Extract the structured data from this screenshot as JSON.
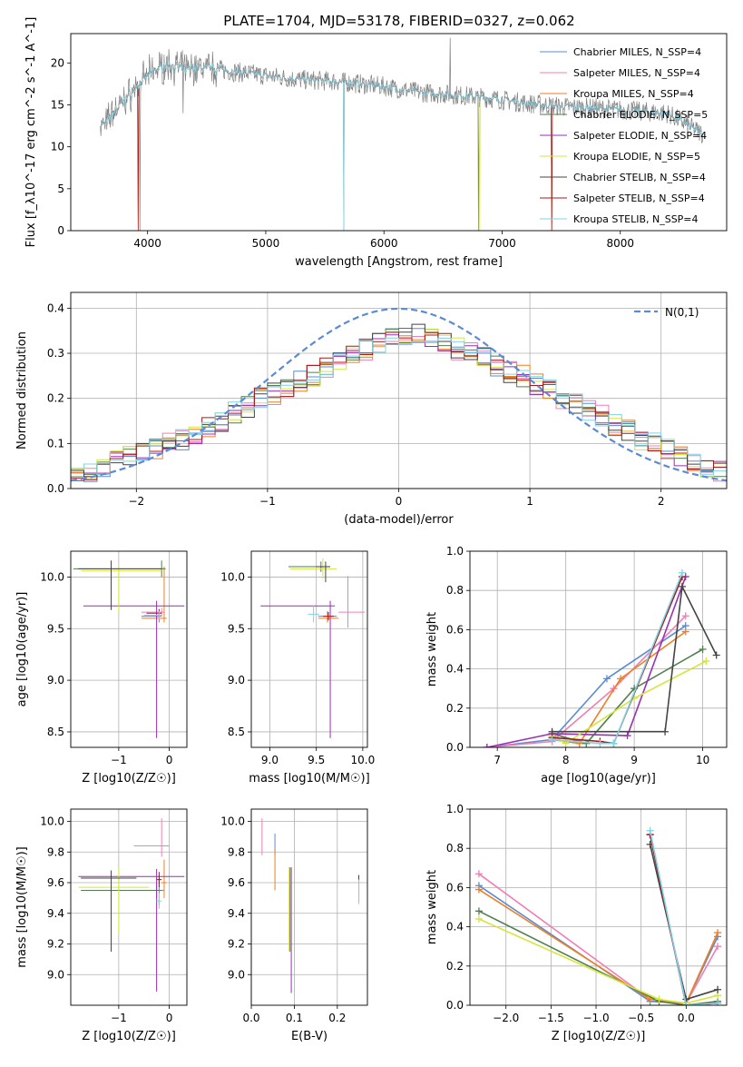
{
  "figure": {
    "title": "PLATE=1704, MJD=53178, FIBERID=0327, z=0.062"
  },
  "series_meta": [
    {
      "name": "Chabrier MILES, N_SSP=4",
      "color": "#5b8bd6"
    },
    {
      "name": "Salpeter MILES, N_SSP=4",
      "color": "#f07fb4"
    },
    {
      "name": "Kroupa MILES, N_SSP=4",
      "color": "#f07f1e"
    },
    {
      "name": "Chabrier ELODIE, N_SSP=5",
      "color": "#4f7f4f"
    },
    {
      "name": "Salpeter ELODIE, N_SSP=4",
      "color": "#9a2fb8"
    },
    {
      "name": "Kroupa ELODIE, N_SSP=5",
      "color": "#d4e63c"
    },
    {
      "name": "Chabrier STELIB, N_SSP=4",
      "color": "#444444"
    },
    {
      "name": "Salpeter STELIB, N_SSP=4",
      "color": "#a81818"
    },
    {
      "name": "Kroupa STELIB, N_SSP=4",
      "color": "#7fd4e6"
    }
  ],
  "data_color": "#808080",
  "chart_data": [
    {
      "id": "spectrum",
      "type": "line",
      "xlabel": "wavelength [Angstrom, rest frame]",
      "ylabel": "Flux [f_λ10^-17 erg cm^-2 s^-1 A^-1]",
      "xlim": [
        3350,
        8900
      ],
      "ylim": [
        0,
        23.5
      ],
      "xticks": [
        4000,
        5000,
        6000,
        7000,
        8000
      ],
      "yticks": [
        0,
        5,
        10,
        15,
        20
      ],
      "grid": false,
      "legend": "top-right",
      "x": [
        3600,
        3650,
        3700,
        3800,
        3900,
        4000,
        4100,
        4200,
        4300,
        4500,
        4700,
        5000,
        5300,
        5600,
        6000,
        6300,
        6600,
        6900,
        7200,
        7500,
        7800,
        8100,
        8400,
        8700
      ],
      "continuum": [
        12.5,
        12.8,
        14.0,
        15.5,
        17.0,
        18.5,
        19.5,
        19.8,
        19.2,
        19.5,
        19.0,
        18.5,
        18.0,
        17.8,
        17.2,
        16.5,
        16.2,
        15.8,
        15.2,
        14.8,
        14.6,
        14.3,
        14.0,
        11.5
      ]
    },
    {
      "id": "residuals",
      "type": "histogram",
      "xlabel": "(data-model)/error",
      "ylabel": "Normed distribution",
      "xlim": [
        -2.5,
        2.5
      ],
      "ylim": [
        0,
        0.435
      ],
      "xticks": [
        -2,
        -1,
        0,
        1,
        2
      ],
      "yticks": [
        0.0,
        0.1,
        0.2,
        0.3,
        0.4
      ],
      "grid": true,
      "legend": "top-right",
      "reference_curve": {
        "label": "N(0,1)",
        "color": "#5b8bd6",
        "style": "dashed",
        "mean": 0,
        "sigma": 1
      },
      "bin_width": 0.1,
      "bin_start": -2.5,
      "base_values": [
        0.03,
        0.04,
        0.045,
        0.06,
        0.07,
        0.08,
        0.09,
        0.1,
        0.11,
        0.12,
        0.14,
        0.15,
        0.17,
        0.18,
        0.2,
        0.21,
        0.22,
        0.24,
        0.25,
        0.27,
        0.28,
        0.3,
        0.31,
        0.32,
        0.33,
        0.34,
        0.34,
        0.33,
        0.32,
        0.31,
        0.3,
        0.29,
        0.27,
        0.26,
        0.25,
        0.23,
        0.22,
        0.2,
        0.19,
        0.17,
        0.16,
        0.14,
        0.13,
        0.11,
        0.1,
        0.09,
        0.07,
        0.06,
        0.05,
        0.04
      ]
    },
    {
      "id": "age-vs-Z",
      "type": "scatter",
      "xlabel": "Z [log10(Z/Z☉)]",
      "ylabel": "age  [log10(age/yr)]",
      "xlim": [
        -1.95,
        0.35
      ],
      "ylim": [
        8.35,
        10.25
      ],
      "xticks": [
        -1,
        0
      ],
      "xticklabels": [
        "−1",
        "0"
      ],
      "yticks": [
        8.5,
        9.0,
        9.5,
        10.0
      ],
      "grid": true,
      "points": [
        {
          "s": 0,
          "x": -0.2,
          "y": 9.62,
          "xerr": [
            0.35,
            0.05
          ],
          "yerr": [
            0.06,
            0.05
          ]
        },
        {
          "s": 1,
          "x": -0.15,
          "y": 9.66,
          "xerr": [
            0.4,
            0.05
          ],
          "yerr": [
            0.04,
            0.04
          ]
        },
        {
          "s": 2,
          "x": -0.1,
          "y": 9.6,
          "xerr": [
            0.45,
            0.05
          ],
          "yerr": [
            0.04,
            0.5
          ]
        },
        {
          "s": 3,
          "x": -0.15,
          "y": 10.08,
          "xerr": [
            1.75,
            0.08
          ],
          "yerr": [
            0.08,
            0.08
          ]
        },
        {
          "s": 4,
          "x": -0.25,
          "y": 9.72,
          "xerr": [
            1.45,
            0.55
          ],
          "yerr": [
            1.28,
            0.05
          ]
        },
        {
          "s": 5,
          "x": -1.0,
          "y": 10.06,
          "xerr": [
            0.75,
            0.85
          ],
          "yerr": [
            0.4,
            0.05
          ]
        },
        {
          "s": 6,
          "x": -1.15,
          "y": 10.08,
          "xerr": [
            0.65,
            1.0
          ],
          "yerr": [
            0.4,
            0.08
          ]
        },
        {
          "s": 7,
          "x": -0.2,
          "y": 9.65,
          "xerr": [
            0.25,
            0.05
          ],
          "yerr": [
            0.04,
            0.04
          ]
        },
        {
          "s": 8,
          "x": -0.2,
          "y": 9.63,
          "xerr": [
            0.3,
            0.05
          ],
          "yerr": [
            0.04,
            0.04
          ]
        }
      ]
    },
    {
      "id": "age-vs-mass",
      "type": "scatter",
      "xlabel": "mass [log10(M/M☉)]",
      "ylabel": "",
      "xlim": [
        8.8,
        10.05
      ],
      "ylim": [
        8.35,
        10.25
      ],
      "xticks": [
        9.0,
        9.5,
        10.0
      ],
      "yticks": [
        8.5,
        9.0,
        9.5,
        10.0
      ],
      "grid": true,
      "points": [
        {
          "s": 0,
          "x": 9.62,
          "y": 9.62,
          "xerr": [
            0.1,
            0.1
          ],
          "yerr": [
            0.06,
            0.05
          ]
        },
        {
          "s": 1,
          "x": 9.84,
          "y": 9.66,
          "xerr": [
            0.1,
            0.18
          ],
          "yerr": [
            0.15,
            0.35
          ]
        },
        {
          "s": 2,
          "x": 9.62,
          "y": 9.6,
          "xerr": [
            0.1,
            0.12
          ],
          "yerr": [
            0.04,
            0.04
          ]
        },
        {
          "s": 3,
          "x": 9.55,
          "y": 10.1,
          "xerr": [
            0.35,
            0.1
          ],
          "yerr": [
            0.05,
            0.05
          ]
        },
        {
          "s": 4,
          "x": 9.65,
          "y": 9.72,
          "xerr": [
            0.75,
            0.05
          ],
          "yerr": [
            1.28,
            0.05
          ]
        },
        {
          "s": 5,
          "x": 9.57,
          "y": 10.08,
          "xerr": [
            0.35,
            0.15
          ],
          "yerr": [
            0.1,
            0.1
          ]
        },
        {
          "s": 6,
          "x": 9.6,
          "y": 10.1,
          "xerr": [
            0.1,
            0.05
          ],
          "yerr": [
            0.15,
            0.05
          ]
        },
        {
          "s": 7,
          "x": 9.63,
          "y": 9.62,
          "xerr": [
            0.06,
            0.06
          ],
          "yerr": [
            0.04,
            0.04
          ]
        },
        {
          "s": 8,
          "x": 9.47,
          "y": 9.64,
          "xerr": [
            0.06,
            0.06
          ],
          "yerr": [
            0.08,
            0.08
          ]
        }
      ]
    },
    {
      "id": "weight-vs-age",
      "type": "line",
      "xlabel": "age  [log10(age/yr)]",
      "ylabel": "mass weight",
      "xlim": [
        6.6,
        10.35
      ],
      "ylim": [
        0,
        1.0
      ],
      "xticks": [
        7,
        8,
        9,
        10
      ],
      "yticks": [
        0.0,
        0.2,
        0.4,
        0.6,
        0.8,
        1.0
      ],
      "grid": true,
      "series_points": [
        {
          "s": 0,
          "x": [
            6.85,
            7.8,
            8.6,
            9.75
          ],
          "y": [
            0.0,
            0.04,
            0.35,
            0.62
          ]
        },
        {
          "s": 1,
          "x": [
            6.85,
            7.8,
            8.7,
            9.75
          ],
          "y": [
            0.0,
            0.03,
            0.3,
            0.67
          ]
        },
        {
          "s": 2,
          "x": [
            7.8,
            8.2,
            8.8,
            9.75
          ],
          "y": [
            0.04,
            0.02,
            0.35,
            0.59
          ]
        },
        {
          "s": 3,
          "x": [
            7.8,
            8.3,
            9.0,
            10.0
          ],
          "y": [
            0.07,
            0.02,
            0.3,
            0.5
          ]
        },
        {
          "s": 4,
          "x": [
            6.85,
            7.8,
            8.9,
            9.75
          ],
          "y": [
            0.0,
            0.07,
            0.06,
            0.87
          ]
        },
        {
          "s": 5,
          "x": [
            7.8,
            8.0,
            9.0,
            10.05
          ],
          "y": [
            0.06,
            0.02,
            0.25,
            0.44
          ]
        },
        {
          "s": 6,
          "x": [
            7.8,
            9.45,
            9.7,
            10.2
          ],
          "y": [
            0.08,
            0.08,
            0.82,
            0.47
          ]
        },
        {
          "s": 7,
          "x": [
            7.8,
            8.5,
            8.7,
            9.7
          ],
          "y": [
            0.05,
            0.03,
            0.02,
            0.87
          ]
        },
        {
          "s": 8,
          "x": [
            7.8,
            8.5,
            8.7,
            9.7
          ],
          "y": [
            0.04,
            0.02,
            0.02,
            0.89
          ]
        }
      ]
    },
    {
      "id": "mass-vs-Z",
      "type": "scatter",
      "xlabel": "Z [log10(Z/Z☉)]",
      "ylabel": "mass [log10(M/M☉)]",
      "xlim": [
        -1.95,
        0.35
      ],
      "ylim": [
        8.8,
        10.08
      ],
      "xticks": [
        -1,
        0
      ],
      "xticklabels": [
        "−1",
        "0"
      ],
      "yticks": [
        9.0,
        9.2,
        9.4,
        9.6,
        9.8,
        10.0
      ],
      "grid": true,
      "points": [
        {
          "s": 0,
          "x": -0.2,
          "y": 9.55,
          "xerr": [
            0.1,
            0.1
          ],
          "yerr": [
            0.1,
            0.1
          ]
        },
        {
          "s": 1,
          "x": -0.15,
          "y": 9.84,
          "xerr": [
            0.55,
            0.15
          ],
          "yerr": [
            0.07,
            0.18
          ]
        },
        {
          "s": 2,
          "x": -0.1,
          "y": 9.6,
          "xerr": [
            0.05,
            0.05
          ],
          "yerr": [
            0.1,
            0.15
          ]
        },
        {
          "s": 3,
          "x": -0.25,
          "y": 9.55,
          "xerr": [
            1.5,
            0.1
          ],
          "yerr": [
            0.05,
            0.05
          ]
        },
        {
          "s": 4,
          "x": -0.25,
          "y": 9.64,
          "xerr": [
            1.55,
            0.55
          ],
          "yerr": [
            0.75,
            0.05
          ]
        },
        {
          "s": 5,
          "x": -1.0,
          "y": 9.57,
          "xerr": [
            0.8,
            0.6
          ],
          "yerr": [
            0.3,
            0.13
          ]
        },
        {
          "s": 6,
          "x": -1.15,
          "y": 9.63,
          "xerr": [
            0.6,
            0.5
          ],
          "yerr": [
            0.48,
            0.05
          ]
        },
        {
          "s": 7,
          "x": -0.2,
          "y": 9.62,
          "xerr": [
            0.05,
            0.05
          ],
          "yerr": [
            0.05,
            0.05
          ]
        },
        {
          "s": 8,
          "x": -0.2,
          "y": 9.48,
          "xerr": [
            0.05,
            0.05
          ],
          "yerr": [
            0.05,
            0.05
          ]
        }
      ]
    },
    {
      "id": "mass-vs-EBV",
      "type": "scatter",
      "xlabel": "E(B-V)",
      "ylabel": "",
      "xlim": [
        0.0,
        0.27
      ],
      "ylim": [
        8.8,
        10.08
      ],
      "xticks": [
        0.0,
        0.1,
        0.2
      ],
      "yticks": [
        9.0,
        9.2,
        9.4,
        9.6,
        9.8,
        10.0
      ],
      "grid": true,
      "points": [
        {
          "s": 0,
          "x": 0.055,
          "y": 9.84,
          "xerr": [
            0,
            0
          ],
          "yerr": [
            0.06,
            0.08
          ]
        },
        {
          "s": 1,
          "x": 0.025,
          "y": 9.9,
          "xerr": [
            0,
            0
          ],
          "yerr": [
            0.12,
            0.12
          ]
        },
        {
          "s": 2,
          "x": 0.055,
          "y": 9.7,
          "xerr": [
            0,
            0
          ],
          "yerr": [
            0.15,
            0.12
          ]
        },
        {
          "s": 3,
          "x": 0.09,
          "y": 9.45,
          "xerr": [
            0,
            0
          ],
          "yerr": [
            0.3,
            0.25
          ]
        },
        {
          "s": 4,
          "x": 0.093,
          "y": 9.3,
          "xerr": [
            0,
            0
          ],
          "yerr": [
            0.42,
            0.4
          ]
        },
        {
          "s": 5,
          "x": 0.088,
          "y": 9.45,
          "xerr": [
            0,
            0
          ],
          "yerr": [
            0.3,
            0.25
          ]
        },
        {
          "s": 6,
          "x": 0.25,
          "y": 9.55,
          "xerr": [
            0,
            0
          ],
          "yerr": [
            0.08,
            0.08
          ]
        },
        {
          "s": 7,
          "x": 0.25,
          "y": 9.57,
          "xerr": [
            0,
            0
          ],
          "yerr": [
            0.08,
            0.08
          ]
        },
        {
          "s": 8,
          "x": 0.25,
          "y": 9.54,
          "xerr": [
            0,
            0
          ],
          "yerr": [
            0.08,
            0.08
          ]
        }
      ]
    },
    {
      "id": "weight-vs-Z",
      "type": "line",
      "xlabel": "Z [log10(Z/Z☉)]",
      "ylabel": "mass weight",
      "xlim": [
        -2.4,
        0.45
      ],
      "ylim": [
        0,
        1.0
      ],
      "xticks": [
        -2.0,
        -1.5,
        -1.0,
        -0.5,
        0.0
      ],
      "xticklabels": [
        "−2.0",
        "−1.5",
        "−1.0",
        "−0.5",
        "0.0"
      ],
      "yticks": [
        0.0,
        0.2,
        0.4,
        0.6,
        0.8,
        1.0
      ],
      "grid": true,
      "series_points": [
        {
          "s": 0,
          "x": [
            -2.3,
            -0.4,
            0.0,
            0.35
          ],
          "y": [
            0.61,
            0.02,
            0.01,
            0.35
          ]
        },
        {
          "s": 1,
          "x": [
            -2.3,
            -0.4,
            0.0,
            0.35
          ],
          "y": [
            0.67,
            0.03,
            0.01,
            0.3
          ]
        },
        {
          "s": 2,
          "x": [
            -2.3,
            -0.4,
            0.0,
            0.35
          ],
          "y": [
            0.59,
            0.03,
            0.01,
            0.37
          ]
        },
        {
          "s": 3,
          "x": [
            -2.3,
            -0.3,
            0.0,
            0.35
          ],
          "y": [
            0.48,
            0.02,
            0.0,
            0.02
          ]
        },
        {
          "s": 4,
          "x": [
            -0.4,
            0.0,
            0.35
          ],
          "y": [
            0.87,
            0.0,
            0.01
          ]
        },
        {
          "s": 5,
          "x": [
            -2.3,
            -0.3,
            0.0,
            0.35
          ],
          "y": [
            0.44,
            0.03,
            0.01,
            0.05
          ]
        },
        {
          "s": 6,
          "x": [
            -0.4,
            0.0,
            0.35
          ],
          "y": [
            0.82,
            0.03,
            0.08
          ]
        },
        {
          "s": 7,
          "x": [
            -0.4,
            0.0,
            0.35
          ],
          "y": [
            0.87,
            0.0,
            0.01
          ]
        },
        {
          "s": 8,
          "x": [
            -0.4,
            0.0,
            0.35
          ],
          "y": [
            0.89,
            0.0,
            0.01
          ]
        }
      ]
    }
  ]
}
